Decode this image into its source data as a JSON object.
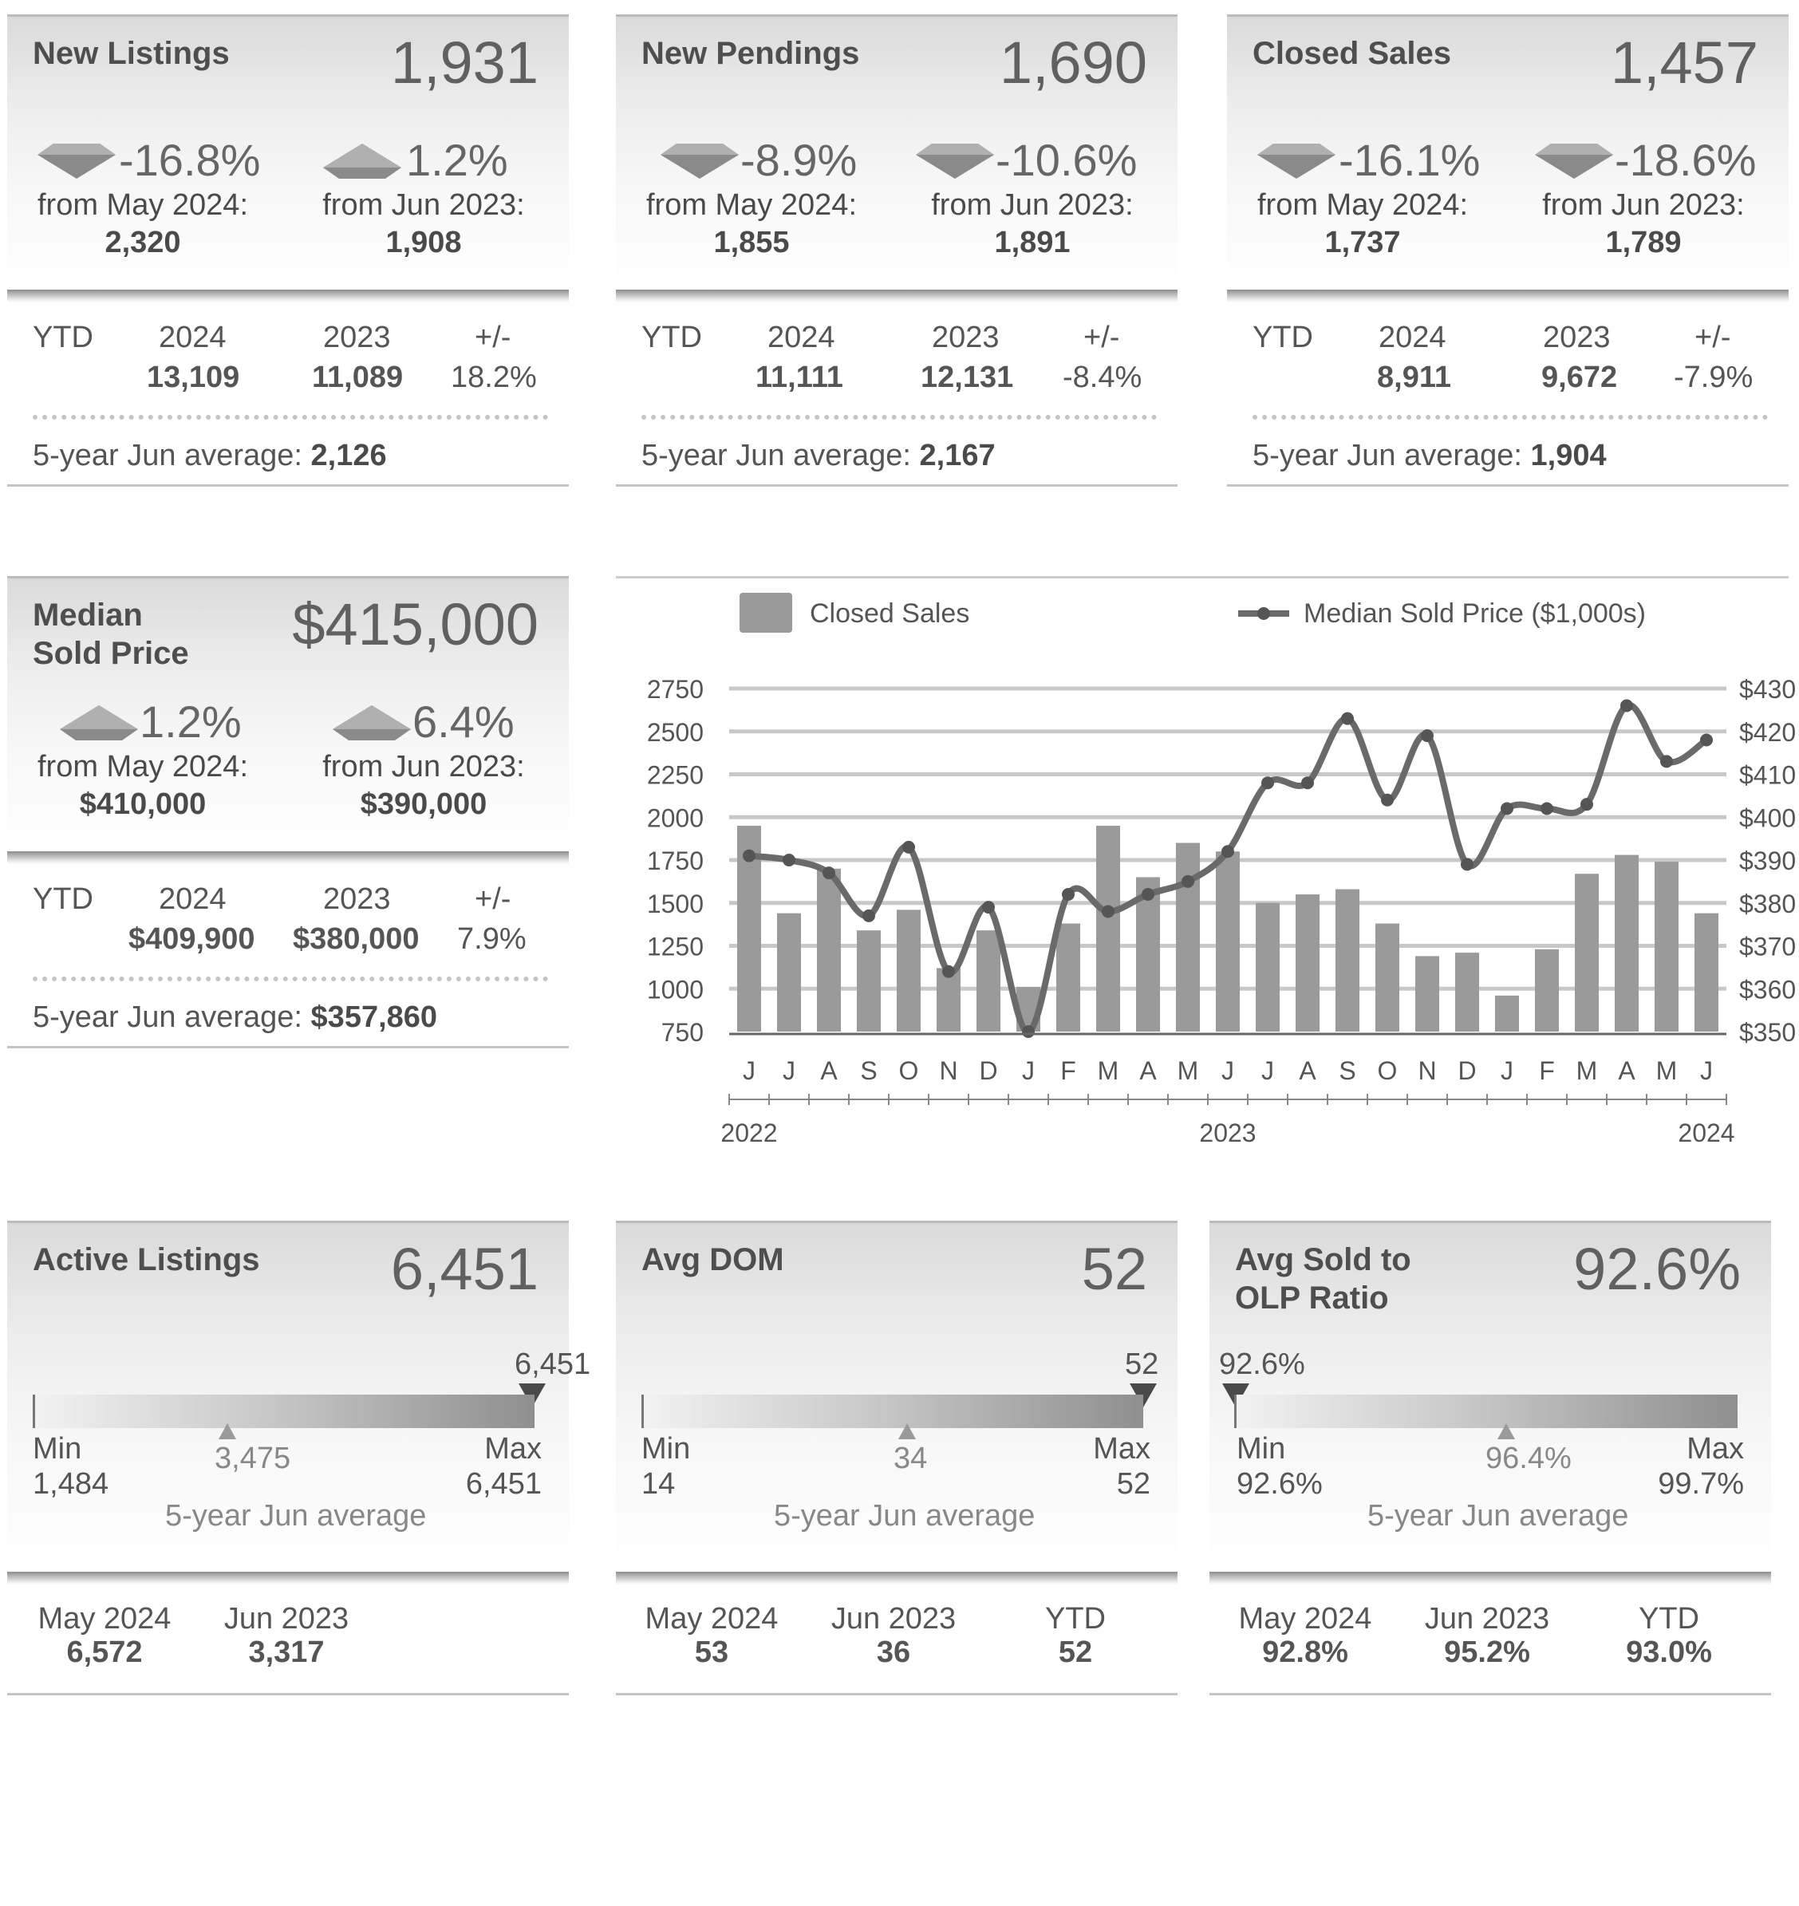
{
  "new_listings": {
    "title": "New Listings",
    "value": "1,931",
    "change_month": {
      "pct": "-16.8%",
      "direction": "down",
      "label": "from May 2024:",
      "value": "2,320"
    },
    "change_year": {
      "pct": "1.2%",
      "direction": "up",
      "label": "from Jun 2023:",
      "value": "1,908"
    },
    "ytd": {
      "label": "YTD",
      "y1_label": "2024",
      "y2_label": "2023",
      "diff_label": "+/-",
      "y1": "13,109",
      "y2": "11,089",
      "diff": "18.2%"
    },
    "avg5_label": "5-year Jun average:",
    "avg5_value": "2,126"
  },
  "new_pendings": {
    "title": "New Pendings",
    "value": "1,690",
    "change_month": {
      "pct": "-8.9%",
      "direction": "down",
      "label": "from May 2024:",
      "value": "1,855"
    },
    "change_year": {
      "pct": "-10.6%",
      "direction": "down",
      "label": "from Jun 2023:",
      "value": "1,891"
    },
    "ytd": {
      "label": "YTD",
      "y1_label": "2024",
      "y2_label": "2023",
      "diff_label": "+/-",
      "y1": "11,111",
      "y2": "12,131",
      "diff": "-8.4%"
    },
    "avg5_label": "5-year Jun average:",
    "avg5_value": "2,167"
  },
  "closed_sales": {
    "title": "Closed Sales",
    "value": "1,457",
    "change_month": {
      "pct": "-16.1%",
      "direction": "down",
      "label": "from May 2024:",
      "value": "1,737"
    },
    "change_year": {
      "pct": "-18.6%",
      "direction": "down",
      "label": "from Jun 2023:",
      "value": "1,789"
    },
    "ytd": {
      "label": "YTD",
      "y1_label": "2024",
      "y2_label": "2023",
      "diff_label": "+/-",
      "y1": "8,911",
      "y2": "9,672",
      "diff": "-7.9%"
    },
    "avg5_label": "5-year Jun average:",
    "avg5_value": "1,904"
  },
  "median_price": {
    "title": "Median\nSold Price",
    "value": "$415,000",
    "change_month": {
      "pct": "1.2%",
      "direction": "up",
      "label": "from May 2024:",
      "value": "$410,000"
    },
    "change_year": {
      "pct": "6.4%",
      "direction": "up",
      "label": "from Jun 2023:",
      "value": "$390,000"
    },
    "ytd": {
      "label": "YTD",
      "y1_label": "2024",
      "y2_label": "2023",
      "diff_label": "+/-",
      "y1": "$409,900",
      "y2": "$380,000",
      "diff": "7.9%"
    },
    "avg5_label": "5-year Jun average:",
    "avg5_value": "$357,860"
  },
  "active_listings": {
    "title": "Active Listings",
    "value": "6,451",
    "gauge": {
      "current": "6,451",
      "current_pos": 1.0,
      "avg": "3,475",
      "avg_pos": 0.39,
      "min_label": "Min",
      "min": "1,484",
      "max_label": "Max",
      "max": "6,451",
      "caption": "5-year Jun average"
    },
    "footer": [
      {
        "label": "May 2024",
        "value": "6,572"
      },
      {
        "label": "Jun 2023",
        "value": "3,317"
      }
    ]
  },
  "avg_dom": {
    "title": "Avg DOM",
    "value": "52",
    "gauge": {
      "current": "52",
      "current_pos": 1.0,
      "avg": "34",
      "avg_pos": 0.53,
      "min_label": "Min",
      "min": "14",
      "max_label": "Max",
      "max": "52",
      "caption": "5-year Jun average"
    },
    "footer": [
      {
        "label": "May 2024",
        "value": "53"
      },
      {
        "label": "Jun 2023",
        "value": "36"
      },
      {
        "label": "YTD",
        "value": "52"
      }
    ]
  },
  "sold_olp": {
    "title": "Avg Sold to\nOLP Ratio",
    "value": "92.6%",
    "gauge": {
      "current": "92.6%",
      "current_pos": 0.0,
      "avg": "96.4%",
      "avg_pos": 0.53,
      "min_label": "Min",
      "min": "92.6%",
      "max_label": "Max",
      "max": "99.7%",
      "caption": "5-year Jun average"
    },
    "footer": [
      {
        "label": "May 2024",
        "value": "92.8%"
      },
      {
        "label": "Jun 2023",
        "value": "95.2%"
      },
      {
        "label": "YTD",
        "value": "93.0%"
      }
    ]
  },
  "chart_data": {
    "type": "bar",
    "title": "",
    "legend": {
      "bars": "Closed Sales",
      "line": "Median Sold Price ($1,000s)",
      "placement": "top"
    },
    "categories": [
      "J",
      "J",
      "A",
      "S",
      "O",
      "N",
      "D",
      "J",
      "F",
      "M",
      "A",
      "M",
      "J",
      "J",
      "A",
      "S",
      "O",
      "N",
      "D",
      "J",
      "F",
      "M",
      "A",
      "M",
      "J"
    ],
    "year_labels": [
      {
        "label": "2022",
        "index": 0
      },
      {
        "label": "2023",
        "index": 12
      },
      {
        "label": "2024",
        "index": 24
      }
    ],
    "series": [
      {
        "name": "Closed Sales",
        "type": "bar",
        "axis": "left",
        "values": [
          1950,
          1440,
          1700,
          1340,
          1460,
          1120,
          1340,
          1010,
          1380,
          1950,
          1650,
          1850,
          1800,
          1500,
          1550,
          1580,
          1380,
          1190,
          1210,
          960,
          1230,
          1670,
          1780,
          1740,
          1440
        ]
      },
      {
        "name": "Median Sold Price ($1,000s)",
        "type": "line",
        "axis": "right",
        "values": [
          391,
          390,
          387,
          377,
          393,
          364,
          379,
          350,
          382,
          378,
          382,
          385,
          392,
          408,
          408,
          423,
          404,
          419,
          389,
          402,
          402,
          403,
          426,
          413,
          418
        ]
      }
    ],
    "left_axis": {
      "ticks": [
        "2750",
        "2500",
        "2250",
        "2000",
        "1750",
        "1500",
        "1250",
        "1000",
        "750"
      ],
      "ylim": [
        750,
        2750
      ]
    },
    "right_axis": {
      "ticks": [
        "$430",
        "$420",
        "$410",
        "$400",
        "$390",
        "$380",
        "$370",
        "$360",
        "$350"
      ],
      "ylim": [
        350,
        430
      ]
    },
    "colors": {
      "bar": "#9a9a9a",
      "line": "#6a6a6a",
      "grid": "#c8c8c8"
    }
  }
}
